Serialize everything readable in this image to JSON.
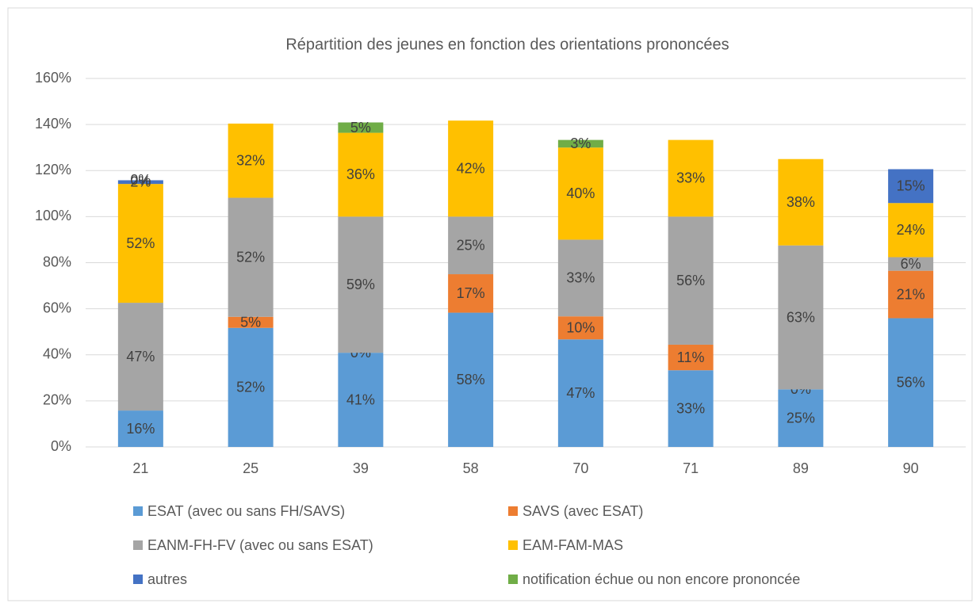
{
  "chart_data": {
    "type": "stacked_bar",
    "title": "Répartition des jeunes en fonction des orientations prononcées",
    "categories": [
      "21",
      "25",
      "39",
      "58",
      "70",
      "71",
      "89",
      "90"
    ],
    "series": [
      {
        "name": "ESAT (avec ou sans FH/SAVS)",
        "color": "#5b9bd5",
        "values": [
          15.8,
          51.7,
          40.9,
          58.3,
          46.7,
          33.3,
          25,
          55.9
        ],
        "value_labels": [
          "16%",
          "52%",
          "41%",
          "58%",
          "47%",
          "33%",
          "25%",
          "56%"
        ]
      },
      {
        "name": "SAVS (avec ESAT)",
        "color": "#ed7d31",
        "values": [
          0,
          4.8,
          0,
          16.7,
          10,
          11.1,
          0,
          20.6
        ],
        "value_labels": [
          null,
          "5%",
          "0%",
          "17%",
          "10%",
          "11%",
          "0%",
          "21%"
        ]
      },
      {
        "name": "EANM-FH-FV (avec ou sans ESAT)",
        "color": "#a5a5a5",
        "values": [
          46.8,
          51.7,
          59.1,
          25,
          33.3,
          55.6,
          62.5,
          5.9
        ],
        "value_labels": [
          "47%",
          "52%",
          "59%",
          "25%",
          "33%",
          "56%",
          "63%",
          "6%"
        ]
      },
      {
        "name": "EAM-FAM-MAS",
        "color": "#ffc000",
        "values": [
          51.6,
          32.2,
          36.4,
          41.7,
          40,
          33.3,
          37.5,
          23.5
        ],
        "value_labels": [
          "52%",
          "32%",
          "36%",
          "42%",
          "40%",
          "33%",
          "38%",
          "24%"
        ]
      },
      {
        "name": "autres",
        "color": "#4472c4",
        "values": [
          1.6,
          0,
          0,
          0,
          0,
          0,
          0,
          14.7
        ],
        "value_labels": [
          "2%",
          null,
          null,
          null,
          null,
          null,
          null,
          "15%"
        ]
      },
      {
        "name": "notification échue ou non encore prononcée",
        "color": "#70ad47",
        "values": [
          0,
          0,
          4.5,
          0,
          3.3,
          0,
          0,
          0
        ],
        "value_labels": [
          "0%",
          null,
          "5%",
          null,
          "3%",
          null,
          null,
          null
        ]
      }
    ],
    "ylim": [
      0,
      160
    ],
    "yticks": [
      {
        "value": 0,
        "label": "0%"
      },
      {
        "value": 20,
        "label": "20%"
      },
      {
        "value": 40,
        "label": "40%"
      },
      {
        "value": 60,
        "label": "60%"
      },
      {
        "value": 80,
        "label": "80%"
      },
      {
        "value": 100,
        "label": "100%"
      },
      {
        "value": 120,
        "label": "120%"
      },
      {
        "value": 140,
        "label": "140%"
      },
      {
        "value": 160,
        "label": "160%"
      }
    ],
    "grid": true,
    "legend": "bottom"
  }
}
